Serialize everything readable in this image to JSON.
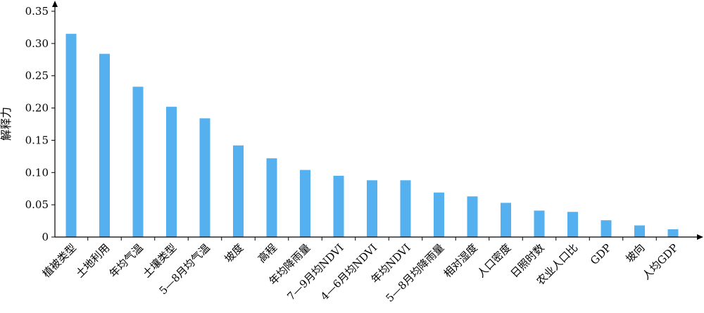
{
  "chart_data": {
    "type": "bar",
    "title": "",
    "xlabel": "",
    "ylabel": "解释力",
    "ylim": [
      0,
      0.35
    ],
    "yticks": [
      "0",
      "0.05",
      "0.10",
      "0.15",
      "0.20",
      "0.25",
      "0.30",
      "0.35"
    ],
    "grid": false,
    "legend": "none",
    "bar_color": "#55b0f0",
    "categories": [
      "植被类型",
      "土地利用",
      "年均气温",
      "土壤类型",
      "5—8月均气温",
      "坡度",
      "高程",
      "年均降雨量",
      "7—9月均NDVI",
      "4—6月均NDVI",
      "年均NDVI",
      "5—8月均降雨量",
      "相对湿度",
      "人口密度",
      "日照时数",
      "农业人口比",
      "GDP",
      "坡向",
      "人均GDP"
    ],
    "values": [
      0.315,
      0.284,
      0.233,
      0.202,
      0.184,
      0.142,
      0.122,
      0.104,
      0.095,
      0.088,
      0.088,
      0.069,
      0.063,
      0.053,
      0.041,
      0.039,
      0.026,
      0.018,
      0.012
    ]
  }
}
